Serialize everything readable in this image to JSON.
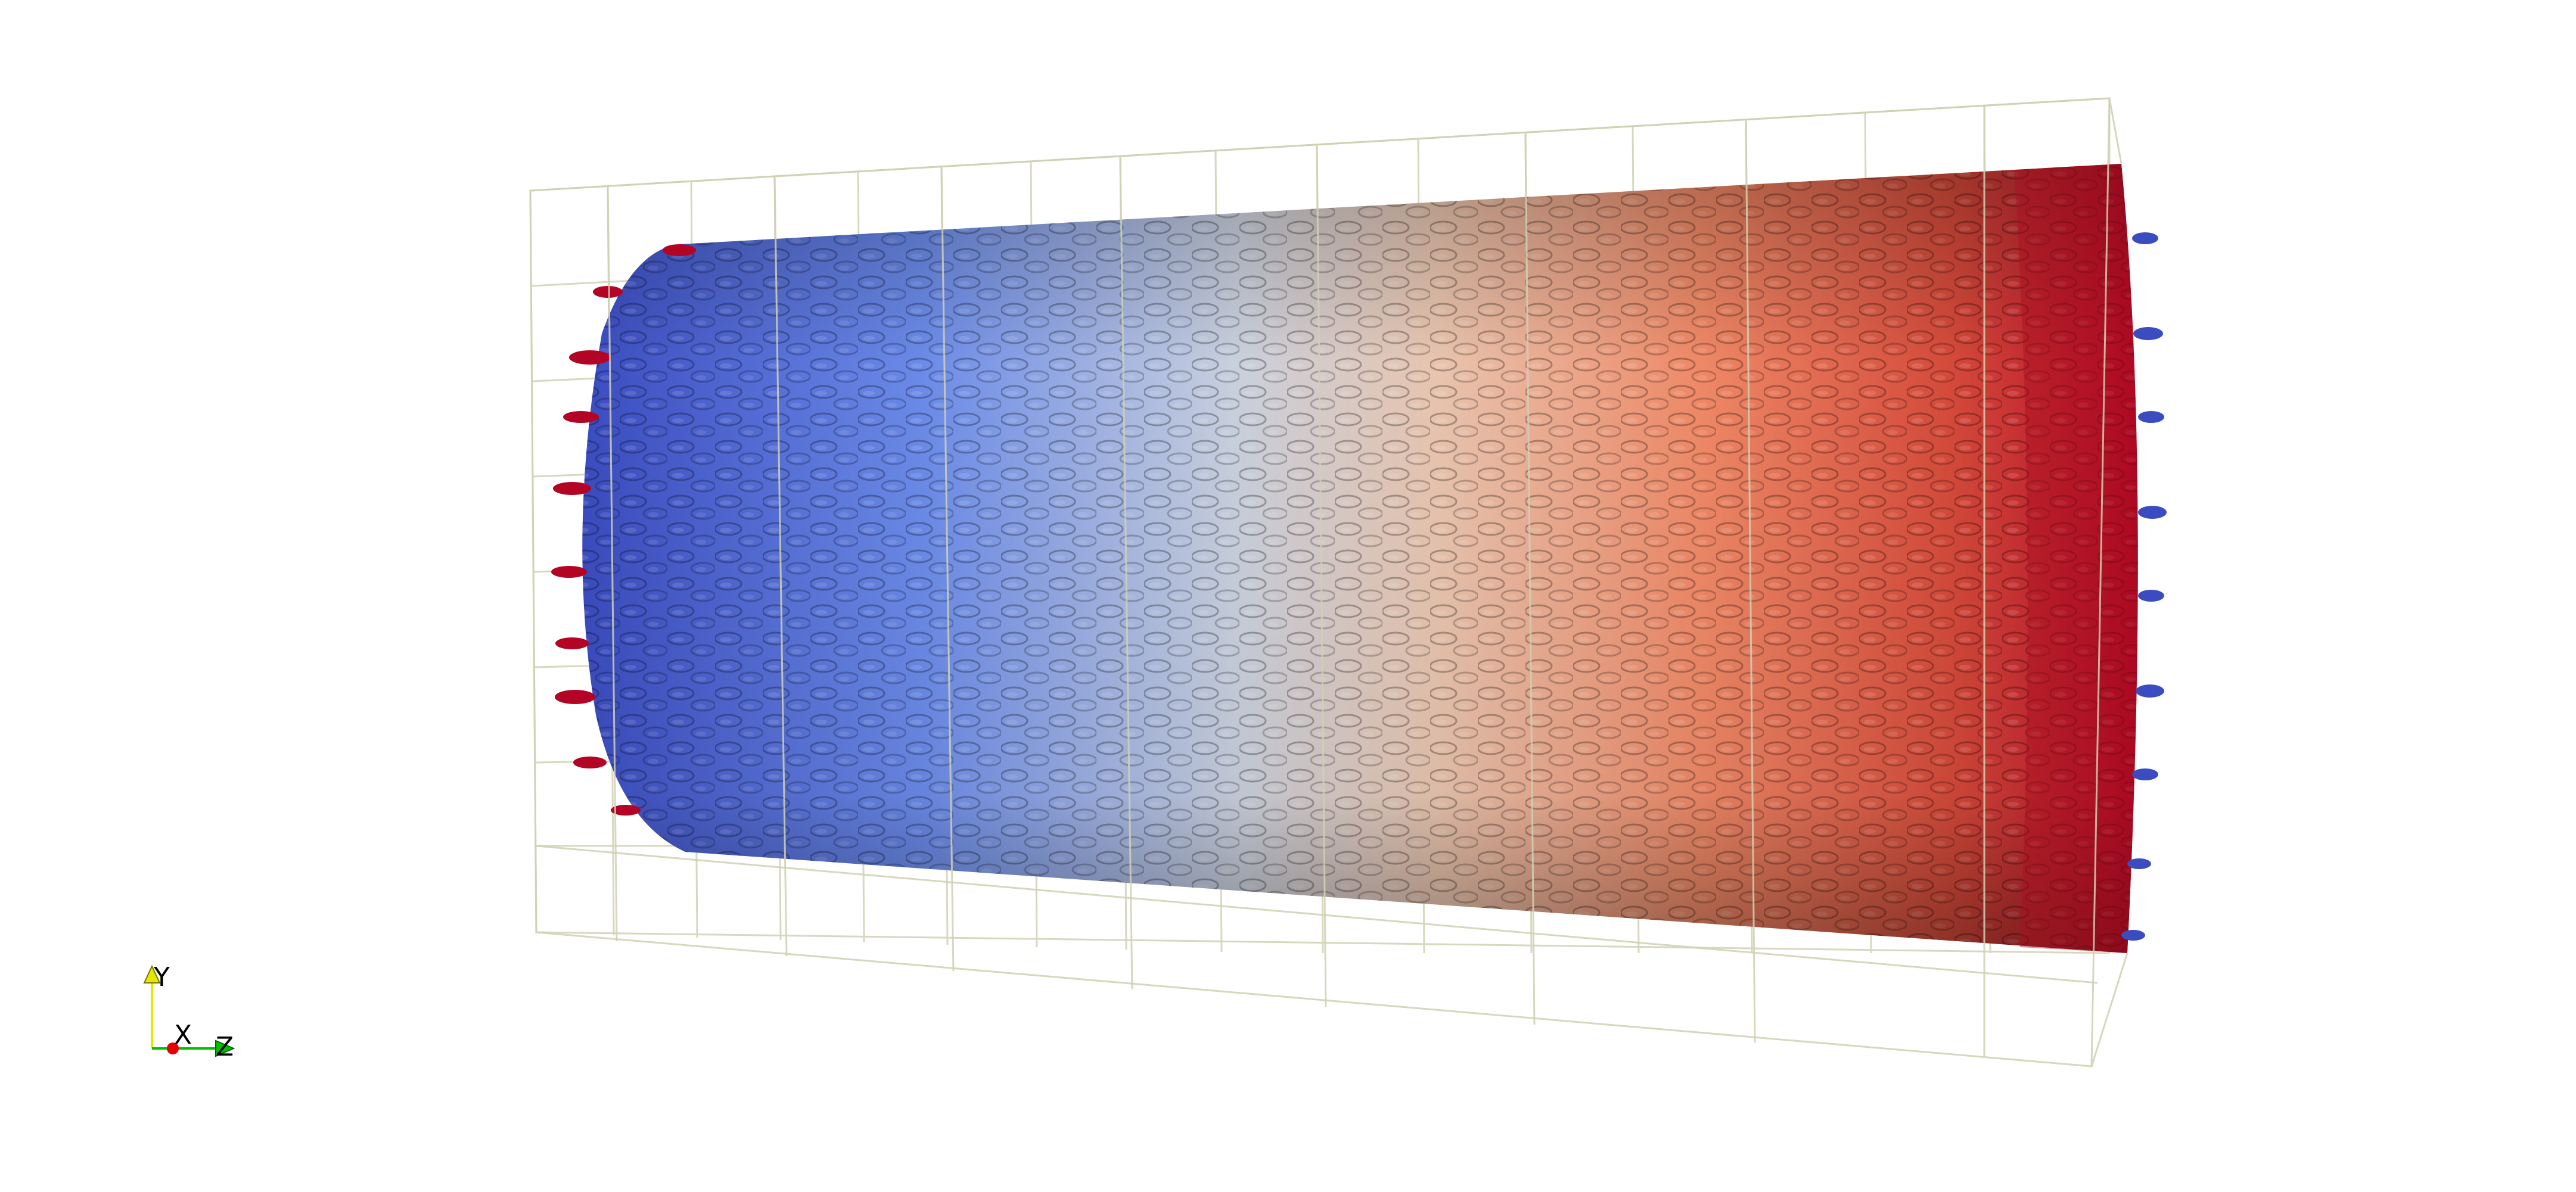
{
  "viewport": {
    "background": "#ffffff"
  },
  "scene": {
    "colormap": {
      "low": "#3b4cc0",
      "mid": "#dddddd",
      "high": "#b40426"
    },
    "outline_color": "#d8d8c0"
  },
  "orientation_axes": {
    "y_label": "Y",
    "x_label": "X",
    "z_label": "Z",
    "y_color": "#e6e600",
    "x_color": "#e60000",
    "z_color": "#00c000"
  }
}
